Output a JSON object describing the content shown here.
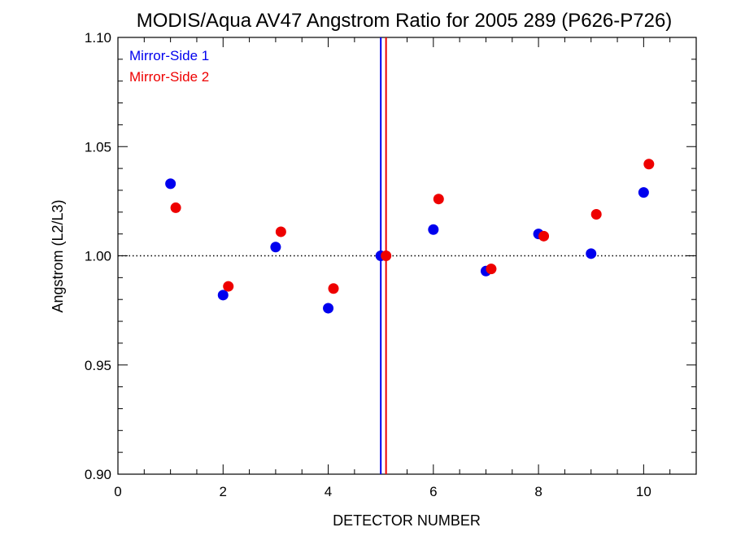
{
  "chart_data": {
    "type": "scatter",
    "title": "MODIS/Aqua AV47 Angstrom Ratio for 2005 289 (P626-P726)",
    "xlabel": "DETECTOR NUMBER",
    "ylabel": "Angstrom (L2/L3)",
    "xlim": [
      0,
      11
    ],
    "ylim": [
      0.9,
      1.1
    ],
    "xticks": [
      0,
      2,
      4,
      6,
      8,
      10
    ],
    "xtick_labels": [
      "0",
      "2",
      "4",
      "6",
      "8",
      "10"
    ],
    "yticks": [
      0.9,
      0.95,
      1.0,
      1.05,
      1.1
    ],
    "ytick_labels": [
      "0.90",
      "0.95",
      "1.00",
      "1.05",
      "1.10"
    ],
    "reference_line_y": 1.0,
    "reference_line_style": "dotted",
    "legend_position": "top-left",
    "series": [
      {
        "name": "Mirror-Side 1",
        "color": "#0000ee",
        "x": [
          1,
          2,
          3,
          4,
          5,
          6,
          7,
          8,
          9,
          10
        ],
        "y": [
          1.033,
          0.982,
          1.004,
          0.976,
          1.0,
          1.012,
          0.993,
          1.01,
          1.001,
          1.029
        ],
        "vertical_line_x": 5.0
      },
      {
        "name": "Mirror-Side 2",
        "color": "#ee0000",
        "x": [
          1.1,
          2.1,
          3.1,
          4.1,
          5.1,
          6.1,
          7.1,
          8.1,
          9.1,
          10.1
        ],
        "y": [
          1.022,
          0.986,
          1.011,
          0.985,
          1.0,
          1.026,
          0.994,
          1.009,
          1.019,
          1.042
        ],
        "vertical_line_x": 5.1
      }
    ]
  }
}
